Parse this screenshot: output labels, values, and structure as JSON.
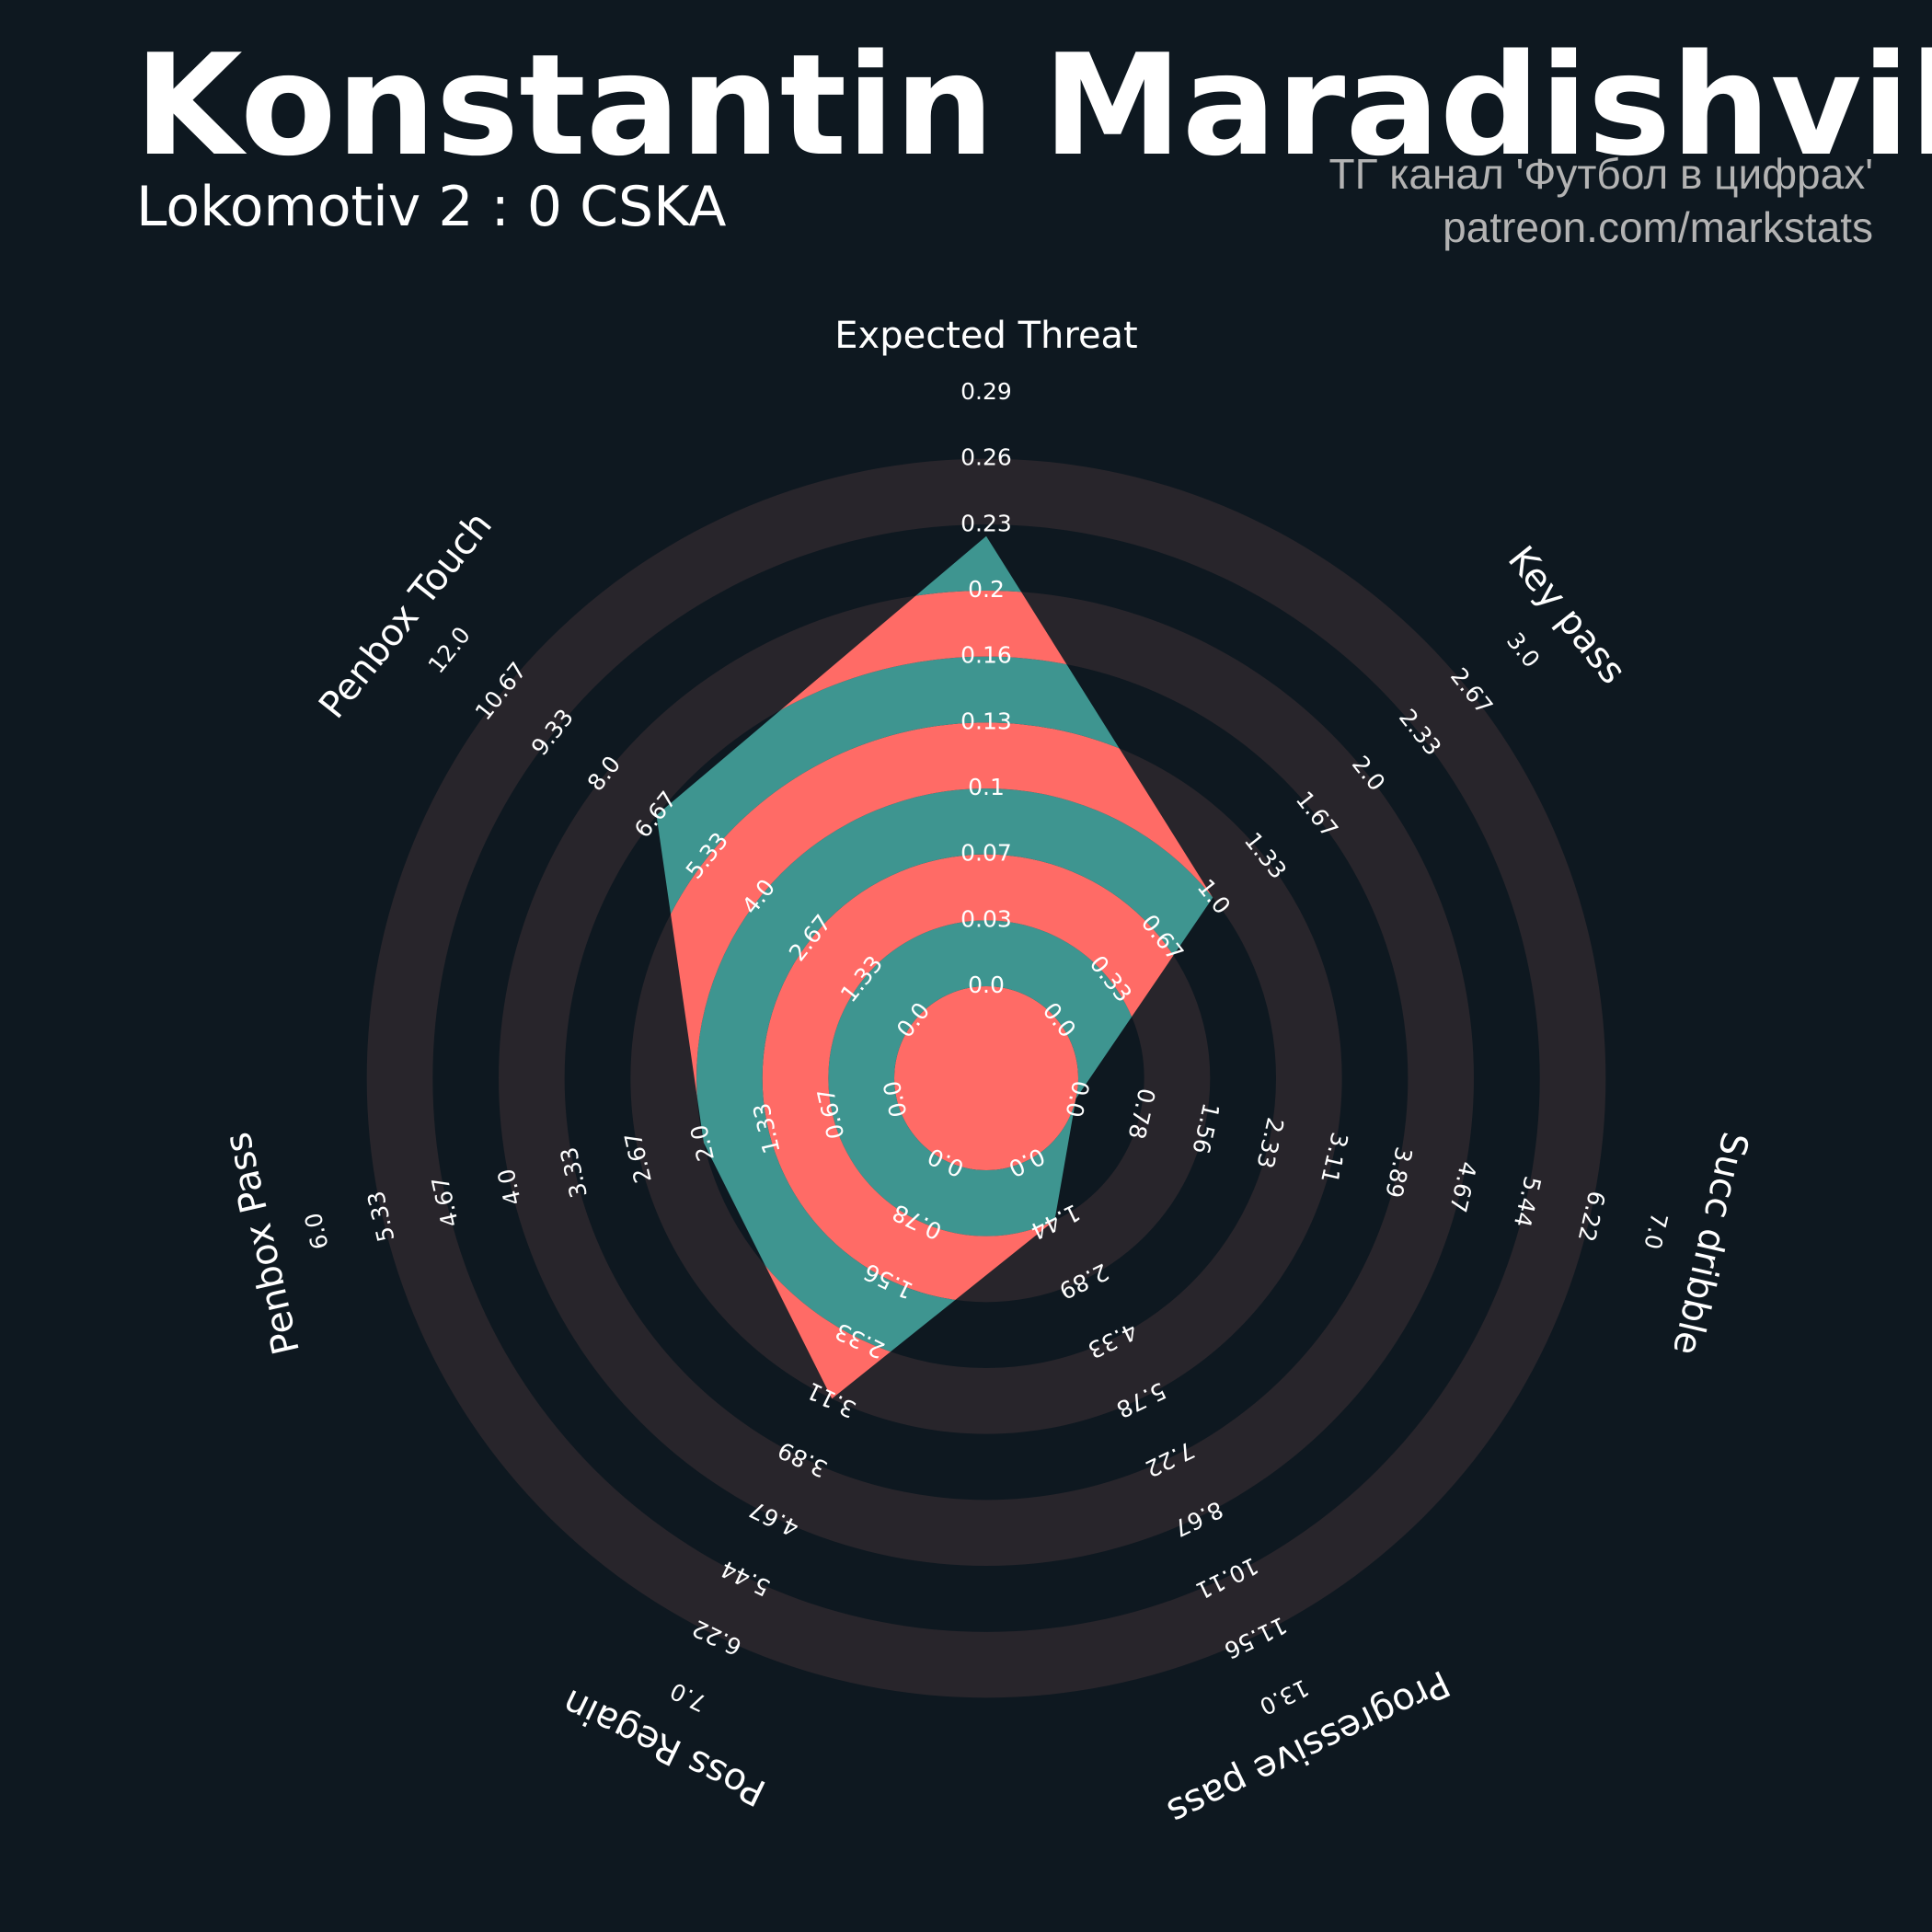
{
  "title": "Konstantin Maradishvili",
  "subtitle": "Lokomotiv 2 : 0 CSKA",
  "credits": {
    "line1": "ТГ канал 'Футбол в цифрах'",
    "line2": "patreon.com/markstats"
  },
  "colors": {
    "background": "#0e1820",
    "ring": "#28252b",
    "player_fill_a": "#ff6b66",
    "player_fill_b": "#3e9590",
    "text": "#ffffff",
    "credits": "#b3b3b3"
  },
  "chart_data": {
    "type": "radar",
    "params": [
      {
        "name": "Expected Threat",
        "min": 0.0,
        "max": 0.29,
        "value": 0.22,
        "ticks": [
          "0.0",
          "0.03",
          "0.07",
          "0.1",
          "0.13",
          "0.16",
          "0.2",
          "0.23",
          "0.26",
          "0.29"
        ]
      },
      {
        "name": "Key pass",
        "min": 0.0,
        "max": 3.0,
        "value": 1.0,
        "ticks": [
          "0.0",
          "0.33",
          "0.67",
          "1.0",
          "1.33",
          "1.67",
          "2.0",
          "2.33",
          "2.67",
          "3.0"
        ]
      },
      {
        "name": "Succ dribble",
        "min": 0.0,
        "max": 7.0,
        "value": 0.0,
        "ticks": [
          "0.0",
          "0.78",
          "1.56",
          "2.33",
          "3.11",
          "3.89",
          "4.67",
          "5.44",
          "6.22",
          "7.0"
        ]
      },
      {
        "name": "Progressive pass",
        "min": 0.0,
        "max": 13.0,
        "value": 1.44,
        "ticks": [
          "0.0",
          "1.44",
          "2.89",
          "4.33",
          "5.78",
          "7.22",
          "8.67",
          "10.11",
          "11.56",
          "13.0"
        ]
      },
      {
        "name": "Poss Regain",
        "min": 0.0,
        "max": 7.0,
        "value": 3.11,
        "ticks": [
          "0.0",
          "0.78",
          "1.56",
          "2.33",
          "3.11",
          "3.89",
          "4.67",
          "5.44",
          "6.22",
          "7.0"
        ]
      },
      {
        "name": "Penbox Pass",
        "min": 0.0,
        "max": 6.0,
        "value": 2.0,
        "ticks": [
          "0.0",
          "0.67",
          "1.33",
          "2.0",
          "2.67",
          "3.33",
          "4.0",
          "4.67",
          "5.33",
          "6.0"
        ]
      },
      {
        "name": "Penbox Touch",
        "min": 0.0,
        "max": 12.0,
        "value": 6.67,
        "ticks": [
          "0.0",
          "1.33",
          "2.67",
          "4.0",
          "5.33",
          "6.67",
          "8.0",
          "9.33",
          "10.67",
          "12.0"
        ]
      }
    ]
  }
}
